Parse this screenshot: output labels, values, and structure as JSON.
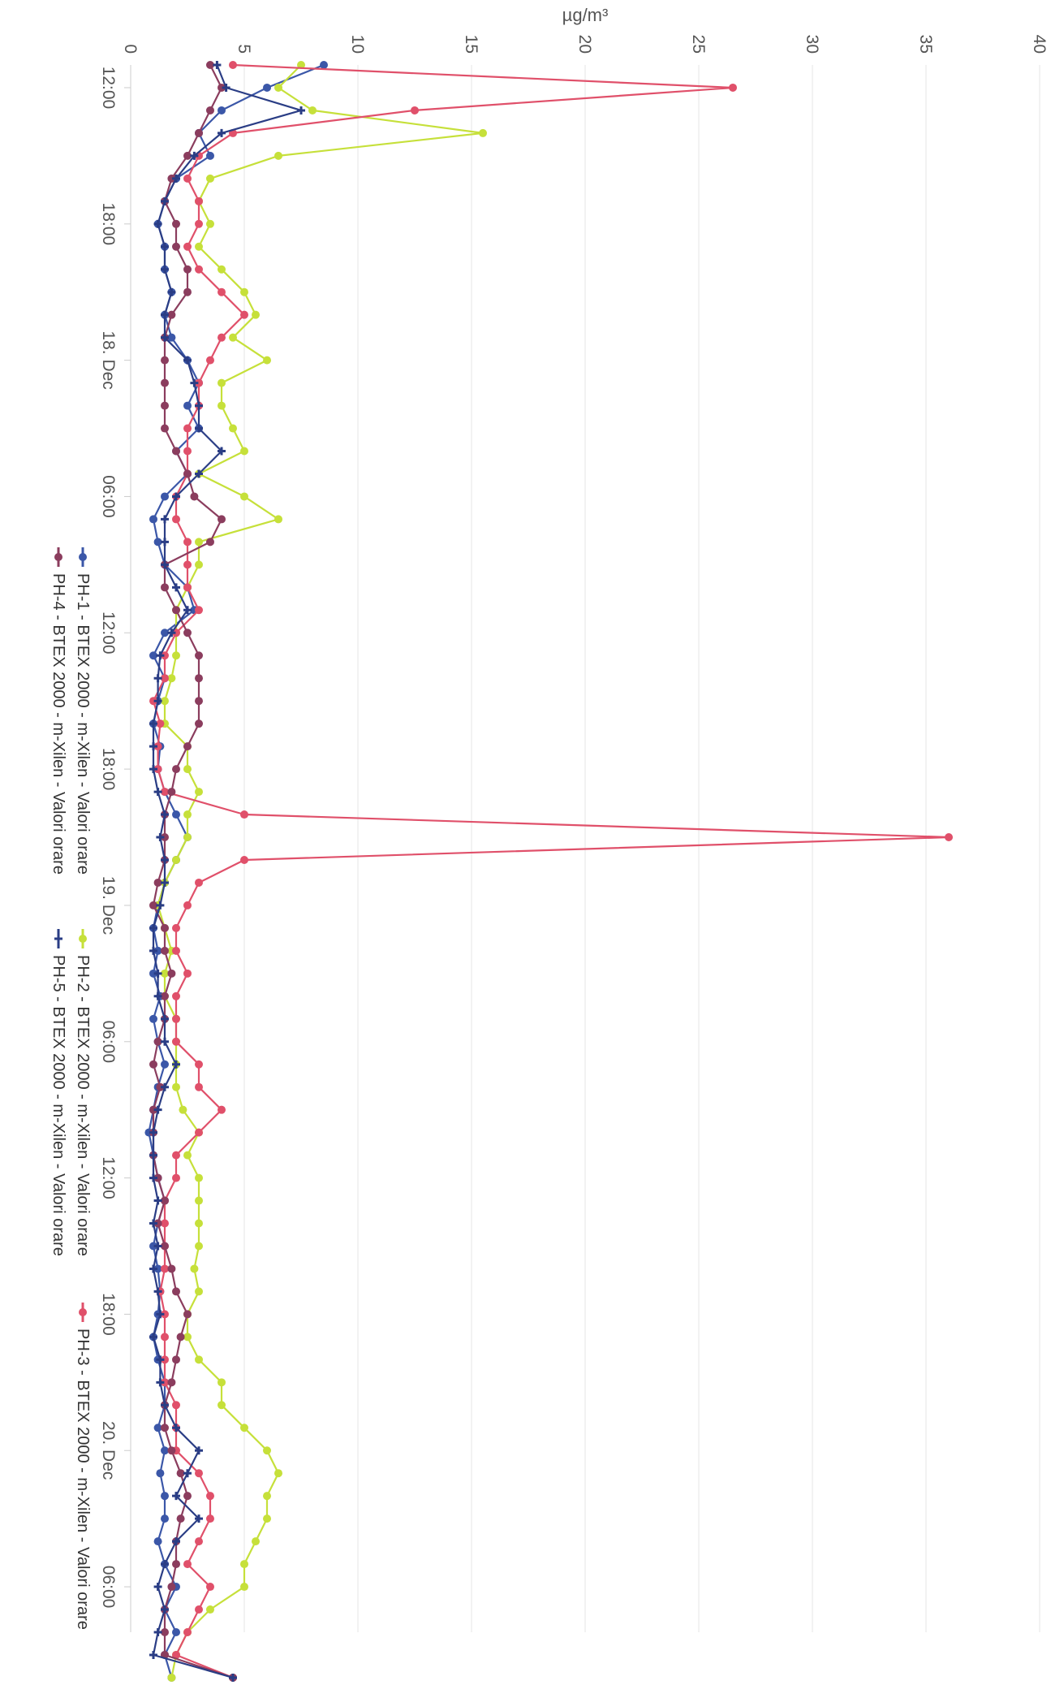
{
  "chart_data": {
    "type": "line",
    "title": "",
    "ylabel": "µg/m³",
    "xlabel": "",
    "ylim": [
      0,
      40
    ],
    "yticks": [
      0,
      5,
      10,
      15,
      20,
      25,
      30,
      35,
      40
    ],
    "xlim": [
      "2024-12-17 11:00",
      "2024-12-20 08:00"
    ],
    "xticks": [
      {
        "t": "2024-12-17 12:00",
        "label": "12:00"
      },
      {
        "t": "2024-12-17 18:00",
        "label": "18:00"
      },
      {
        "t": "2024-12-18 00:00",
        "label": "18. Dec"
      },
      {
        "t": "2024-12-18 06:00",
        "label": "06:00"
      },
      {
        "t": "2024-12-18 12:00",
        "label": "12:00"
      },
      {
        "t": "2024-12-18 18:00",
        "label": "18:00"
      },
      {
        "t": "2024-12-19 00:00",
        "label": "19. Dec"
      },
      {
        "t": "2024-12-19 06:00",
        "label": "06:00"
      },
      {
        "t": "2024-12-19 12:00",
        "label": "12:00"
      },
      {
        "t": "2024-12-19 18:00",
        "label": "18:00"
      },
      {
        "t": "2024-12-20 00:00",
        "label": "20. Dec"
      },
      {
        "t": "2024-12-20 06:00",
        "label": "06:00"
      }
    ],
    "grid": true,
    "legend_position": "bottom",
    "x_start": "2024-12-17 11:00",
    "x_step_hours": 1,
    "series": [
      {
        "name": "PH-1 - BTEX 2000 - m-Xilen - Valori orare",
        "color": "#3b57a8",
        "marker": "circle",
        "values": [
          8.5,
          6,
          4,
          3,
          3.5,
          2,
          1.5,
          1.2,
          1.5,
          1.5,
          1.8,
          1.5,
          1.8,
          2.5,
          3,
          2.5,
          3,
          2,
          2.5,
          1.5,
          1,
          1.2,
          1.5,
          2.5,
          2.8,
          1.5,
          1,
          1.5,
          1.2,
          1,
          1.3,
          1.2,
          1.5,
          2,
          2.5,
          2,
          1.5,
          1.2,
          1,
          1.2,
          1,
          1.3,
          1,
          1.2,
          1.5,
          1.2,
          1,
          0.8,
          1,
          1.2,
          1.5,
          1.2,
          1,
          1.2,
          1.3,
          1.2,
          1,
          1.2,
          1.5,
          1.5,
          1.2,
          1.5,
          1.3,
          1.5,
          1.5,
          1.2,
          1.5,
          2,
          1.5,
          2,
          1.5,
          1.8
        ]
      },
      {
        "name": "PH-2 - BTEX 2000 - m-Xilen - Valori orare",
        "color": "#c6e03a",
        "marker": "circle",
        "values": [
          7.5,
          6.5,
          8,
          15.5,
          6.5,
          3.5,
          3,
          3.5,
          3,
          4,
          5,
          5.5,
          4.5,
          6,
          4,
          4,
          4.5,
          5,
          3,
          5,
          6.5,
          3,
          3,
          2.5,
          2,
          2,
          2,
          1.8,
          1.5,
          1.5,
          2.5,
          2.5,
          3,
          2.5,
          2.5,
          2,
          1.5,
          1.2,
          1.5,
          1.8,
          1.5,
          1.5,
          2,
          2,
          2,
          2,
          2.3,
          3,
          2.5,
          3,
          3,
          3,
          3,
          2.8,
          3,
          2.5,
          2.5,
          3,
          4,
          4,
          5,
          6,
          6.5,
          6,
          6,
          5.5,
          5,
          5,
          3.5,
          2.5,
          2,
          1.8
        ]
      },
      {
        "name": "PH-3 - BTEX 2000 - m-Xilen - Valori orare",
        "color": "#e0506a",
        "marker": "circle",
        "values": [
          4.5,
          26.5,
          12.5,
          4.5,
          3,
          2.5,
          3,
          3,
          2.5,
          3,
          4,
          5,
          4,
          3.5,
          3,
          3,
          2.5,
          2.5,
          2.5,
          2,
          2,
          2.5,
          2.5,
          2.5,
          3,
          2,
          1.5,
          1.5,
          1,
          1.3,
          1.2,
          1.2,
          1.5,
          5,
          36,
          5,
          3,
          2.5,
          2,
          2,
          2.5,
          2,
          2,
          2,
          3,
          3,
          4,
          3,
          2,
          2,
          1.5,
          1.5,
          1.5,
          1.5,
          1.3,
          1.5,
          1.5,
          1.5,
          1.5,
          2,
          2,
          2,
          3,
          3.5,
          3.5,
          3,
          2.5,
          3.5,
          3,
          2.5,
          2,
          4.5
        ]
      },
      {
        "name": "PH-4 - BTEX 2000 - m-Xilen - Valori orare",
        "color": "#8b3d5e",
        "marker": "circle",
        "values": [
          3.5,
          4,
          3.5,
          3,
          2.5,
          1.8,
          1.5,
          2,
          2,
          2.5,
          2.5,
          1.8,
          1.5,
          1.5,
          1.5,
          1.5,
          1.5,
          2,
          2.5,
          2.8,
          4,
          3.5,
          1.5,
          1.5,
          2,
          2.5,
          3,
          3,
          3,
          3,
          2.5,
          2,
          1.8,
          1.5,
          1.5,
          1.5,
          1.2,
          1,
          1.5,
          1.5,
          1.8,
          1.5,
          1.5,
          1.2,
          1,
          1.3,
          1,
          1,
          1,
          1.2,
          1.5,
          1.2,
          1.5,
          1.8,
          2,
          2.5,
          2.2,
          2,
          1.8,
          1.5,
          1.5,
          1.8,
          2.2,
          2.5,
          2.2,
          2,
          2,
          1.8,
          1.5,
          1.5,
          1.5,
          4.5
        ]
      },
      {
        "name": "PH-5 - BTEX 2000 - m-Xilen - Valori orare",
        "color": "#2a3d85",
        "marker": "cross",
        "values": [
          3.8,
          4.2,
          7.5,
          4,
          2.8,
          2,
          1.5,
          1.2,
          1.5,
          1.5,
          1.8,
          1.5,
          1.5,
          2.5,
          2.8,
          3,
          3,
          4,
          3,
          2,
          1.5,
          1.5,
          1.5,
          2,
          2.5,
          1.8,
          1.3,
          1.2,
          1.2,
          1,
          1,
          1,
          1.2,
          1.5,
          1.3,
          1.5,
          1.5,
          1.3,
          1,
          1,
          1.2,
          1.2,
          1.5,
          1.5,
          2,
          1.5,
          1.2,
          1,
          1,
          1,
          1.2,
          1,
          1.2,
          1,
          1.2,
          1.3,
          1,
          1.3,
          1.3,
          1.5,
          2,
          3,
          2.5,
          2,
          3,
          2,
          1.5,
          1.2,
          1.5,
          1.2,
          1,
          4.5
        ]
      }
    ]
  }
}
